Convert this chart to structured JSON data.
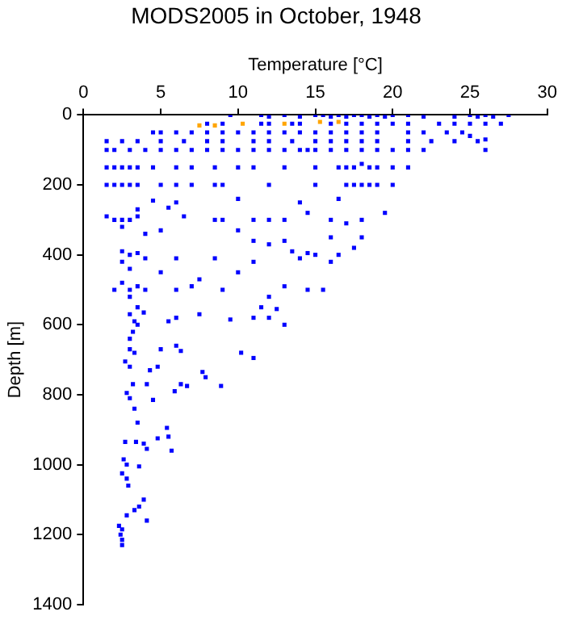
{
  "chart_data": {
    "type": "scatter",
    "title": "MODS2005 in October, 1948",
    "xlabel": "Temperature [°C]",
    "ylabel": "Depth [m]",
    "xlim": [
      0,
      30
    ],
    "xticks": [
      0,
      5,
      10,
      15,
      20,
      25,
      30
    ],
    "ylim": [
      1400,
      0
    ],
    "yticks": [
      0,
      200,
      400,
      600,
      800,
      1000,
      1200,
      1400
    ],
    "grid": false,
    "legend": false,
    "marker": "square",
    "series": [
      {
        "color": "#0000ff",
        "x": [
          9.5,
          11.5,
          12,
          13,
          14,
          15,
          15.5,
          16,
          16.5,
          17,
          17.5,
          18,
          18.5,
          19,
          19.5,
          20,
          21,
          22,
          24,
          25,
          25.5,
          26,
          26.5,
          27.5,
          8,
          9,
          11.5,
          12,
          13.5,
          14,
          16,
          17,
          18,
          19,
          20,
          21,
          23,
          24,
          25,
          26,
          27,
          4.5,
          5,
          6,
          7,
          8,
          9,
          10,
          11,
          12,
          13,
          14,
          15,
          16,
          17,
          18,
          19,
          21,
          22,
          23.5,
          24.5,
          25,
          26,
          1.5,
          2.5,
          3.5,
          5,
          6.5,
          8,
          9,
          11,
          12,
          13.5,
          15,
          16,
          17,
          18,
          19,
          21,
          22.5,
          24,
          25.5,
          1.5,
          2,
          3,
          4,
          5,
          6,
          7,
          8,
          9,
          10,
          11,
          12,
          13,
          14,
          14.5,
          15,
          16,
          17,
          18,
          19,
          20,
          21,
          22,
          26,
          1.5,
          2,
          2.5,
          3,
          3.5,
          4.5,
          6,
          7,
          8.5,
          10,
          11,
          13,
          15,
          16.5,
          17,
          17.5,
          18,
          18.5,
          19,
          20,
          21,
          1.5,
          2,
          2.5,
          3,
          3.5,
          5,
          6,
          7,
          8.5,
          9,
          12,
          15,
          17,
          17.5,
          18,
          18.5,
          19,
          20,
          4.5,
          6,
          10,
          14,
          16.5,
          3.5,
          5.5,
          6.5,
          8.5,
          9,
          11,
          12,
          13,
          14.5,
          16,
          17,
          18,
          19.5,
          1.5,
          2,
          2.5,
          3,
          3.5,
          2.5,
          4,
          5,
          10,
          11,
          12,
          13,
          16,
          18,
          16.5,
          15,
          14.5,
          13.5,
          14,
          16,
          17.5,
          2.5,
          3,
          3.5,
          4,
          2.5,
          3,
          2.5,
          3,
          3.5,
          4,
          2,
          3,
          5,
          6,
          7,
          7.5,
          9,
          10,
          11,
          8.5,
          6,
          13,
          12,
          11.5,
          13,
          14.5,
          15.5,
          3.5,
          3,
          3.3,
          3.2,
          3.5,
          3,
          3.9,
          5.5,
          6,
          7.5,
          9.5,
          11,
          12,
          12.5,
          3,
          3.3,
          2.7,
          3,
          4.3,
          4.8,
          5,
          6,
          6.3,
          10.2,
          11,
          7.7,
          7.9,
          8.9,
          6.7,
          6.3,
          5.9,
          4.1,
          3.2,
          2.8,
          3,
          3.3,
          4.5,
          3.5,
          5.4,
          5.5,
          4.8,
          2.7,
          3.4,
          3.9,
          4.1,
          5.7,
          2.6,
          2.8,
          3.6,
          2.5,
          2.8,
          2.9,
          3.9,
          3.6,
          3.3,
          4.1,
          2.8,
          2.3,
          2.5,
          2.4,
          2.5,
          2.5
        ],
        "values": [
          0,
          0,
          5,
          0,
          5,
          0,
          0,
          5,
          0,
          5,
          0,
          0,
          5,
          0,
          5,
          0,
          0,
          5,
          5,
          0,
          5,
          0,
          5,
          0,
          25,
          25,
          25,
          25,
          25,
          25,
          25,
          25,
          25,
          25,
          25,
          25,
          25,
          25,
          25,
          25,
          25,
          50,
          50,
          50,
          50,
          50,
          50,
          50,
          50,
          50,
          50,
          50,
          50,
          50,
          50,
          50,
          50,
          50,
          50,
          50,
          50,
          60,
          70,
          75,
          75,
          75,
          75,
          75,
          75,
          75,
          75,
          75,
          75,
          75,
          75,
          75,
          75,
          75,
          75,
          75,
          75,
          75,
          100,
          100,
          100,
          100,
          100,
          100,
          100,
          100,
          100,
          100,
          100,
          100,
          100,
          100,
          100,
          100,
          100,
          100,
          100,
          100,
          100,
          100,
          100,
          100,
          150,
          150,
          150,
          150,
          150,
          150,
          150,
          150,
          150,
          150,
          150,
          150,
          150,
          150,
          150,
          150,
          140,
          150,
          150,
          150,
          150,
          200,
          200,
          200,
          200,
          200,
          200,
          200,
          200,
          200,
          200,
          200,
          200,
          200,
          200,
          200,
          200,
          200,
          200,
          245,
          250,
          240,
          250,
          240,
          270,
          265,
          290,
          300,
          300,
          300,
          300,
          300,
          280,
          300,
          310,
          300,
          280,
          290,
          300,
          300,
          300,
          290,
          320,
          340,
          330,
          330,
          360,
          370,
          360,
          350,
          350,
          400,
          400,
          395,
          390,
          410,
          420,
          380,
          390,
          400,
          395,
          410,
          420,
          440,
          480,
          500,
          490,
          500,
          500,
          520,
          450,
          500,
          490,
          470,
          500,
          450,
          420,
          410,
          410,
          490,
          520,
          550,
          600,
          500,
          500,
          550,
          570,
          590,
          620,
          600,
          640,
          565,
          590,
          580,
          570,
          585,
          580,
          580,
          555,
          670,
          680,
          705,
          720,
          730,
          720,
          670,
          660,
          675,
          680,
          695,
          735,
          750,
          775,
          775,
          770,
          790,
          770,
          770,
          795,
          810,
          840,
          815,
          880,
          895,
          920,
          925,
          935,
          935,
          940,
          955,
          960,
          985,
          1000,
          1005,
          1025,
          1040,
          1060,
          1100,
          1120,
          1130,
          1160,
          1145,
          1175,
          1185,
          1200,
          1215,
          1230
        ]
      },
      {
        "color": "#ffa500",
        "x": [
          7.5,
          8.5,
          10.3,
          13,
          15.3,
          16.5
        ],
        "values": [
          30,
          30,
          25,
          25,
          20,
          20
        ]
      }
    ]
  }
}
